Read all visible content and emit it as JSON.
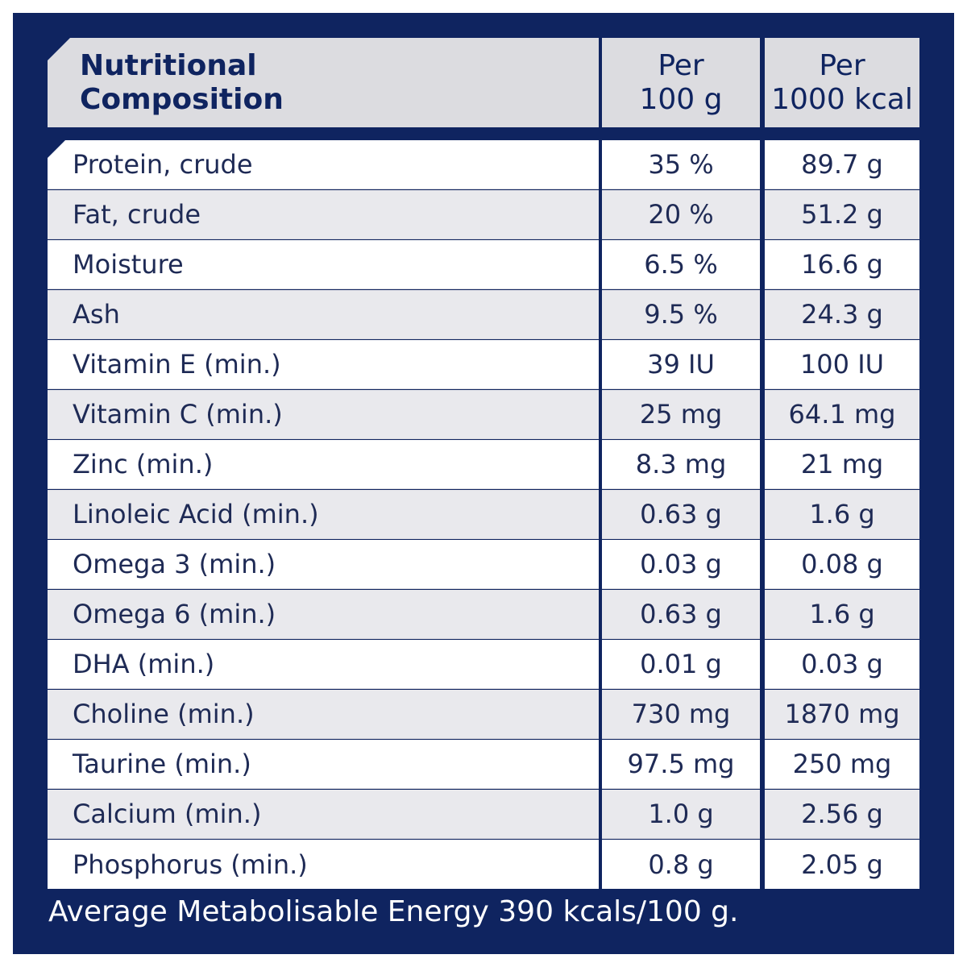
{
  "header": {
    "title_line1": "Nutritional",
    "title_line2": "Composition",
    "col1_line1": "Per",
    "col1_line2": "100 g",
    "col2_line1": "Per",
    "col2_line2": "1000 kcal"
  },
  "rows": [
    {
      "name": "Protein, crude",
      "per100g": "35 %",
      "per1000kcal": "89.7 g"
    },
    {
      "name": "Fat, crude",
      "per100g": "20 %",
      "per1000kcal": "51.2 g"
    },
    {
      "name": "Moisture",
      "per100g": "6.5 %",
      "per1000kcal": "16.6 g"
    },
    {
      "name": "Ash",
      "per100g": "9.5 %",
      "per1000kcal": "24.3 g"
    },
    {
      "name": "Vitamin E (min.)",
      "per100g": "39 IU",
      "per1000kcal": "100 IU"
    },
    {
      "name": "Vitamin C (min.)",
      "per100g": "25 mg",
      "per1000kcal": "64.1 mg"
    },
    {
      "name": "Zinc (min.)",
      "per100g": "8.3 mg",
      "per1000kcal": "21 mg"
    },
    {
      "name": "Linoleic Acid (min.)",
      "per100g": "0.63 g",
      "per1000kcal": "1.6 g"
    },
    {
      "name": "Omega 3 (min.)",
      "per100g": "0.03 g",
      "per1000kcal": "0.08 g"
    },
    {
      "name": "Omega 6 (min.)",
      "per100g": "0.63 g",
      "per1000kcal": "1.6 g"
    },
    {
      "name": "DHA (min.)",
      "per100g": "0.01 g",
      "per1000kcal": "0.03 g"
    },
    {
      "name": "Choline (min.)",
      "per100g": "730 mg",
      "per1000kcal": "1870 mg"
    },
    {
      "name": "Taurine (min.)",
      "per100g": "97.5 mg",
      "per1000kcal": "250 mg"
    },
    {
      "name": "Calcium (min.)",
      "per100g": "1.0 g",
      "per1000kcal": "2.56 g"
    },
    {
      "name": "Phosphorus (min.)",
      "per100g": "0.8 g",
      "per1000kcal": "2.05 g"
    }
  ],
  "footer": {
    "text": "Average Metabolisable Energy 390 kcals/100 g."
  },
  "colors": {
    "background": "#0f2460",
    "header_bg": "#dcdce0",
    "row_alt": "#e9e9ed",
    "text": "#1e2a55"
  }
}
